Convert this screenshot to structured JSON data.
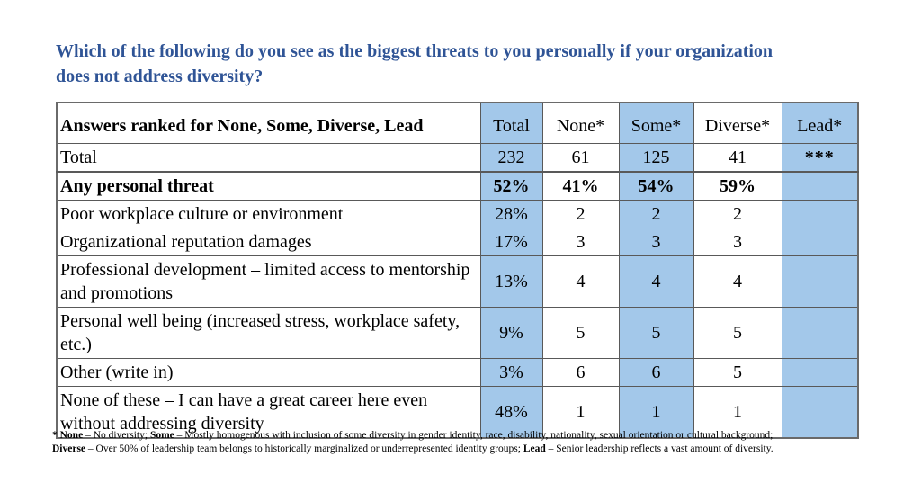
{
  "title": "Which of the following do you see as the biggest threats to you personally if your organization does not address diversity?",
  "colors": {
    "title_blue": "#2F5496",
    "cell_blue": "#A3C8EA",
    "border_gray": "#595959"
  },
  "chart_data": {
    "type": "table",
    "title": "Which of the following do you see as the biggest threats to you personally if your organization does not address diversity?",
    "corner_header": "Answers ranked for None, Some, Diverse, Lead",
    "columns": [
      "Total",
      "None*",
      "Some*",
      "Diverse*",
      "Lead*"
    ],
    "shaded_columns": [
      "Total",
      "Some*",
      "Lead*"
    ],
    "rows": [
      {
        "label": "Total",
        "style": "total",
        "values": [
          "232",
          "61",
          "125",
          "41",
          "***"
        ]
      },
      {
        "label": "Any personal threat",
        "style": "bold",
        "values": [
          "52%",
          "41%",
          "54%",
          "59%",
          ""
        ]
      },
      {
        "label": "Poor workplace culture or environment",
        "style": "normal",
        "values": [
          "28%",
          "2",
          "2",
          "2",
          ""
        ]
      },
      {
        "label": "Organizational reputation damages",
        "style": "normal",
        "values": [
          "17%",
          "3",
          "3",
          "3",
          ""
        ]
      },
      {
        "label": "Professional development – limited access to mentorship and promotions",
        "style": "normal",
        "values": [
          "13%",
          "4",
          "4",
          "4",
          ""
        ]
      },
      {
        "label": "Personal well being (increased stress, workplace safety, etc.)",
        "style": "normal",
        "values": [
          "9%",
          "5",
          "5",
          "5",
          ""
        ]
      },
      {
        "label": "Other (write in)",
        "style": "normal",
        "values": [
          "3%",
          "6",
          "6",
          "5",
          ""
        ]
      },
      {
        "label": "None of these – I can have a great career here even without addressing diversity",
        "style": "normal",
        "values": [
          "48%",
          "1",
          "1",
          "1",
          ""
        ]
      }
    ]
  },
  "footnote": {
    "segments": [
      {
        "text": "* None",
        "bold": true
      },
      {
        "text": " – No diversity; ",
        "bold": false
      },
      {
        "text": "Some",
        "bold": true
      },
      {
        "text": " – Mostly homogenous with inclusion of some diversity in gender identity, race, disability, nationality, sexual orientation or cultural background;",
        "bold": false,
        "br_after": true
      },
      {
        "text": "Diverse",
        "bold": true
      },
      {
        "text": " – Over 50% of leadership team belongs to historically marginalized or underrepresented identity groups; ",
        "bold": false
      },
      {
        "text": "Lead",
        "bold": true
      },
      {
        "text": " – Senior leadership reflects a vast amount of diversity.",
        "bold": false
      }
    ]
  }
}
